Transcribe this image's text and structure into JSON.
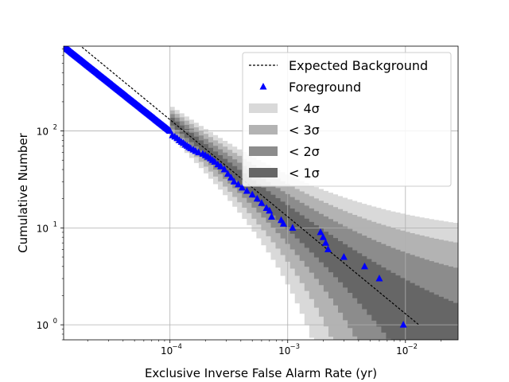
{
  "chart_data": {
    "type": "scatter",
    "title": "",
    "xlabel": "Exclusive Inverse False Alarm Rate (yr)",
    "ylabel": "Cumulative Number",
    "xscale": "log",
    "yscale": "log",
    "xlim": [
      1.25e-05,
      0.028
    ],
    "ylim": [
      0.7,
      750
    ],
    "grid": true,
    "legend_position": "top-right",
    "x_ticks": [
      {
        "value": 0.0001,
        "base": "10",
        "exp": "−4"
      },
      {
        "value": 0.001,
        "base": "10",
        "exp": "−3"
      },
      {
        "value": 0.01,
        "base": "10",
        "exp": "−2"
      }
    ],
    "y_ticks": [
      {
        "value": 1,
        "base": "10",
        "exp": "0"
      },
      {
        "value": 10,
        "base": "10",
        "exp": "1"
      },
      {
        "value": 100,
        "base": "10",
        "exp": "2"
      }
    ],
    "legend": [
      {
        "label": "Expected Background",
        "kind": "dashed-line",
        "color": "#000000"
      },
      {
        "label": "Foreground",
        "kind": "triangle",
        "color": "#0000ff"
      },
      {
        "label": "< 4σ",
        "kind": "patch",
        "color": "#d9d9d9"
      },
      {
        "label": "< 3σ",
        "kind": "patch",
        "color": "#b3b3b3"
      },
      {
        "label": "< 2σ",
        "kind": "patch",
        "color": "#8c8c8c"
      },
      {
        "label": "< 1σ",
        "kind": "patch",
        "color": "#666666"
      }
    ],
    "expected_background": {
      "x": [
        1.25e-05,
        0.013
      ],
      "y": [
        1050,
        1
      ]
    },
    "bands": {
      "x_start": 0.0001,
      "x_end": 0.028,
      "colors": [
        "#d9d9d9",
        "#b3b3b3",
        "#8c8c8c",
        "#666666"
      ]
    },
    "foreground_dense": {
      "x_start": 1.25e-05,
      "x_end": 0.0001,
      "y_start": 750,
      "y_end": 100,
      "count": 170
    },
    "foreground": {
      "x": [
        0.000105,
        0.00011,
        0.000115,
        0.00012,
        0.000125,
        0.00013,
        0.000135,
        0.00014,
        0.000145,
        0.00015,
        0.000158,
        0.000165,
        0.000175,
        0.00019,
        0.0002,
        0.00021,
        0.00022,
        0.00023,
        0.00024,
        0.000255,
        0.00027,
        0.00029,
        0.00031,
        0.00033,
        0.00035,
        0.00038,
        0.00041,
        0.00045,
        0.0005,
        0.00055,
        0.0006,
        0.00066,
        0.0007,
        0.00073,
        0.00088,
        0.00092,
        0.0011,
        0.0019,
        0.002,
        0.0021,
        0.0022,
        0.003,
        0.0045,
        0.006,
        0.0096
      ],
      "y": [
        90,
        87,
        84,
        80,
        77,
        75,
        72,
        70,
        68,
        66,
        64,
        62,
        60,
        58,
        56,
        54,
        52,
        50,
        48,
        45,
        43,
        40,
        36,
        33,
        30,
        28,
        26,
        24,
        22,
        20,
        18,
        16,
        15,
        13,
        12,
        11,
        10,
        9,
        8,
        7,
        6,
        5,
        4,
        3,
        1
      ]
    }
  }
}
